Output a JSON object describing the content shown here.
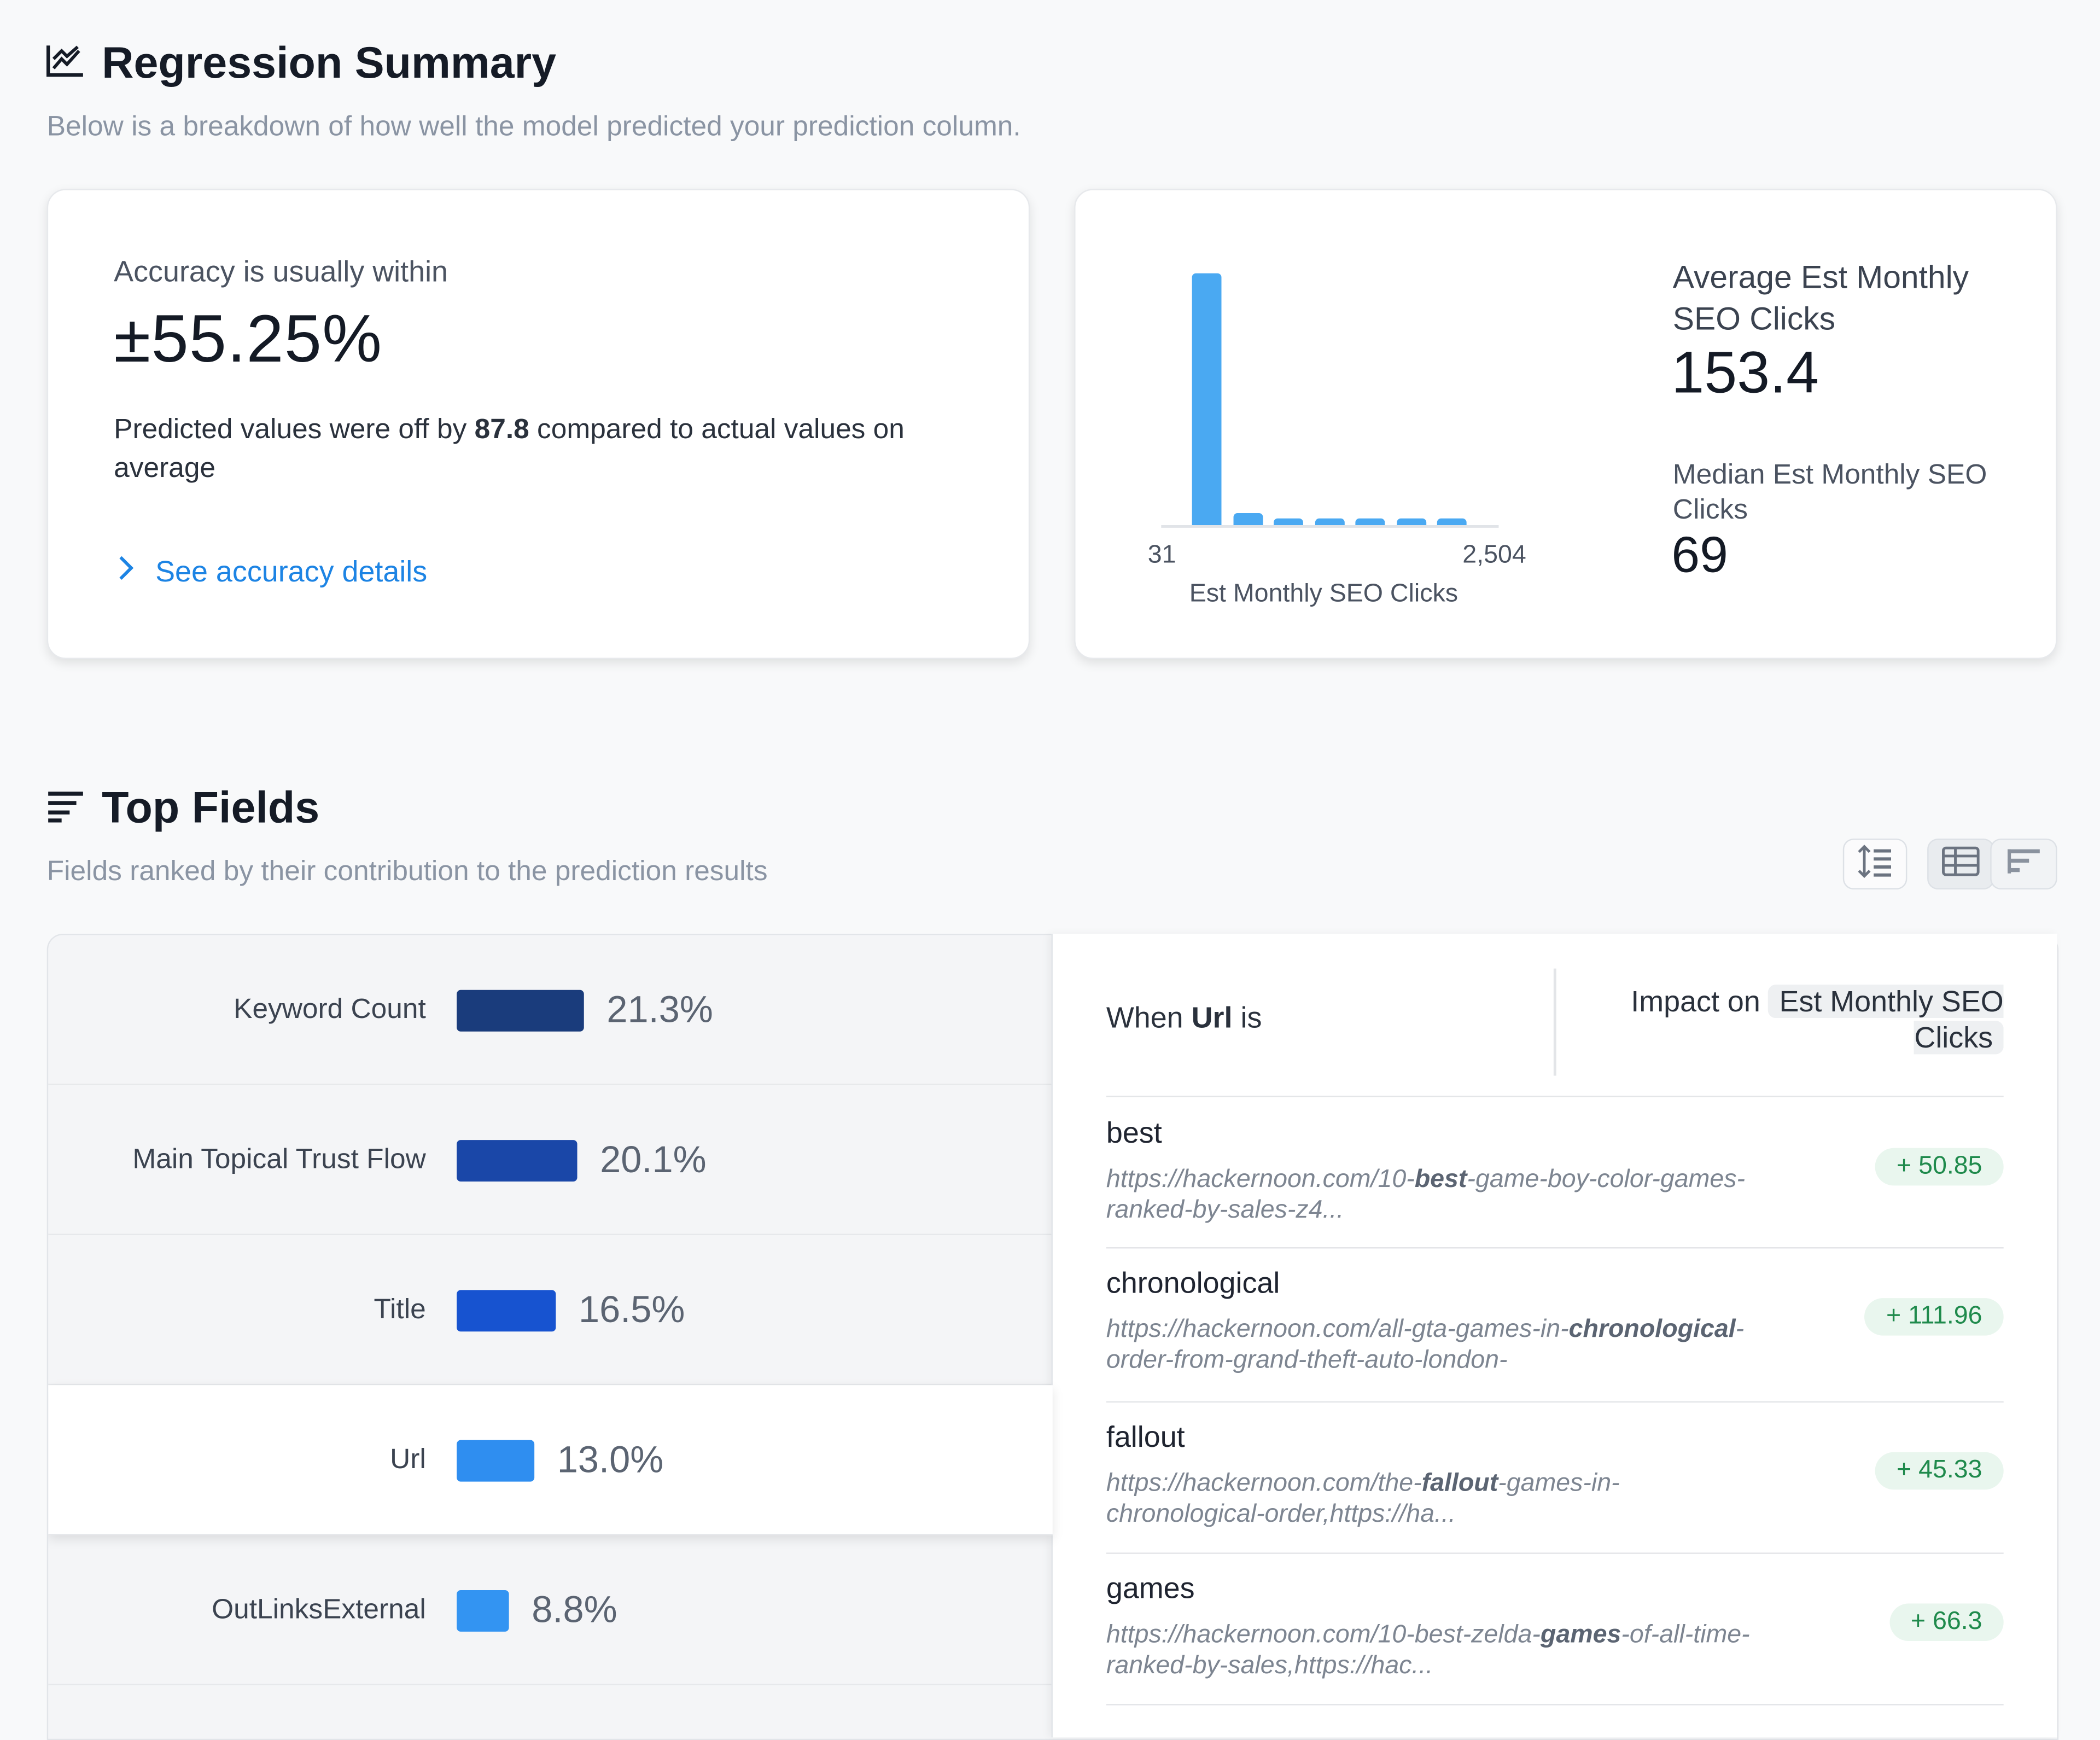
{
  "regression": {
    "title": "Regression Summary",
    "subtitle": "Below is a breakdown of how well the model predicted your prediction column."
  },
  "accuracy": {
    "label": "Accuracy is usually within",
    "value": "±55.25%",
    "desc_prefix": "Predicted values were off by",
    "desc_value": "87.8",
    "desc_suffix": "compared to actual values on average",
    "link": "See accuracy details"
  },
  "distribution": {
    "axis_min": "31",
    "axis_max": "2,504",
    "axis_label": "Est Monthly SEO Clicks",
    "avg_label": "Average Est Monthly SEO Clicks",
    "avg_value": "153.4",
    "median_label": "Median Est Monthly SEO Clicks",
    "median_value": "69",
    "bar_color": "#4aa9f2",
    "bin_heights_fraction": [
      1.0,
      0.05,
      0.025,
      0.025,
      0.025,
      0.025,
      0.025
    ]
  },
  "top_fields": {
    "title": "Top Fields",
    "subtitle": "Fields ranked by their contribution to the prediction results",
    "items": [
      {
        "name": "Keyword Count",
        "pct": "21.3%",
        "value": 21.3,
        "color": "#1a3c7c"
      },
      {
        "name": "Main Topical Trust Flow",
        "pct": "20.1%",
        "value": 20.1,
        "color": "#1a47a8"
      },
      {
        "name": "Title",
        "pct": "16.5%",
        "value": 16.5,
        "color": "#1753d0"
      },
      {
        "name": "Url",
        "pct": "13.0%",
        "value": 13.0,
        "color": "#2f8ef0"
      },
      {
        "name": "OutLinksExternal",
        "pct": "8.8%",
        "value": 8.8,
        "color": "#3394f2"
      }
    ],
    "selected_index": 3
  },
  "impact": {
    "when_prefix": "When",
    "field": "Url",
    "when_suffix": "is",
    "impact_on": "Impact on",
    "target": "Est Monthly SEO Clicks",
    "rows": [
      {
        "word": "best",
        "url_pre": "https://hackernoon.com/10-",
        "url_bold": "best",
        "url_post": "-game-boy-color-games-ranked-by-sales-z4...",
        "impact": "+ 50.85"
      },
      {
        "word": "chronological",
        "url_pre": "https://hackernoon.com/all-gta-games-in-",
        "url_bold": "chronological",
        "url_post": "-order-from-grand-theft-auto-london-",
        "impact": "+ 111.96"
      },
      {
        "word": "fallout",
        "url_pre": "https://hackernoon.com/the-",
        "url_bold": "fallout",
        "url_post": "-games-in-chronological-order,https://ha...",
        "impact": "+ 45.33"
      },
      {
        "word": "games",
        "url_pre": "https://hackernoon.com/10-best-zelda-",
        "url_bold": "games",
        "url_post": "-of-all-time-ranked-by-sales,https://hac...",
        "impact": "+ 66.3"
      }
    ]
  }
}
